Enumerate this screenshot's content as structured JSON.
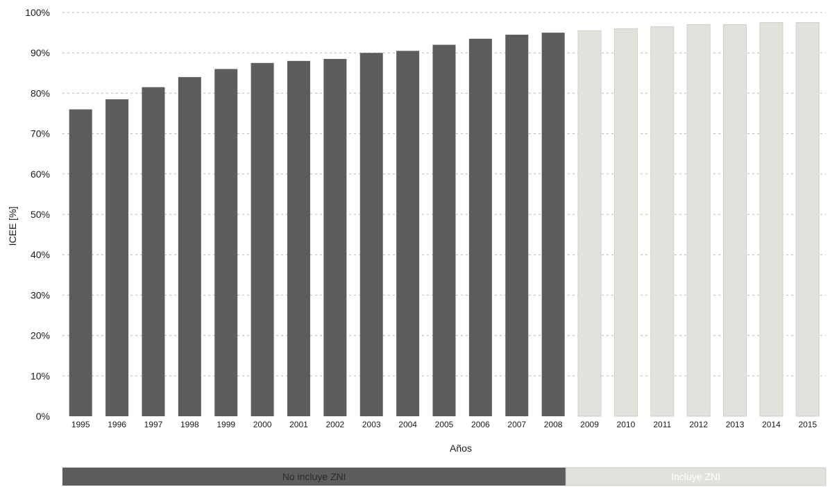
{
  "chart_data": {
    "type": "bar",
    "xlabel": "Años",
    "ylabel": "ICEE  [%]",
    "ylim": [
      0,
      100
    ],
    "yticks": [
      "0%",
      "10%",
      "20%",
      "30%",
      "40%",
      "50%",
      "60%",
      "70%",
      "80%",
      "90%",
      "100%"
    ],
    "grid": "horizontal dashed",
    "categories": [
      "1995",
      "1996",
      "1997",
      "1998",
      "1999",
      "2000",
      "2001",
      "2002",
      "2003",
      "2004",
      "2005",
      "2006",
      "2007",
      "2008",
      "2009",
      "2010",
      "2011",
      "2012",
      "2013",
      "2014",
      "2015"
    ],
    "values": [
      76,
      78.5,
      81.5,
      84,
      86,
      87.5,
      88,
      88.5,
      90,
      90.5,
      92,
      93.5,
      94.5,
      95,
      95.5,
      96,
      96.5,
      97,
      97,
      97.5,
      97.5
    ],
    "groups": [
      {
        "label": "No incluye ZNI",
        "from": "1995",
        "to": "2008",
        "color": "#5d5d5d"
      },
      {
        "label": "Incluye ZNI",
        "from": "2009",
        "to": "2015",
        "color": "#e2e2dc"
      }
    ],
    "legend_placement": "bottom"
  },
  "colors": {
    "dark_bar": "#5d5d5d",
    "light_bar": "#e2e2dc",
    "light_bar_edge": "#cfcfc8",
    "grid": "#b9b9b9",
    "text": "#1a1a1a"
  }
}
